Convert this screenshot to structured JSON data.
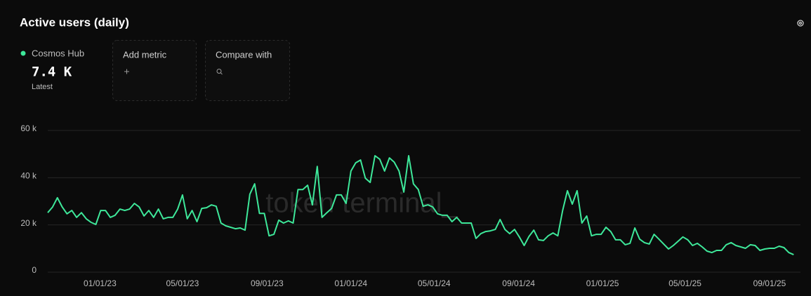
{
  "chart_data": {
    "type": "line",
    "title": "Active users (daily)",
    "x": [
      "2022-10-17",
      "2022-10-24",
      "2022-10-31",
      "2022-11-07",
      "2022-11-14",
      "2022-11-21",
      "2022-11-28",
      "2022-12-05",
      "2022-12-12",
      "2022-12-19",
      "2022-12-26",
      "2023-01-02",
      "2023-01-09",
      "2023-01-16",
      "2023-01-23",
      "2023-01-30",
      "2023-02-06",
      "2023-02-13",
      "2023-02-20",
      "2023-02-27",
      "2023-03-06",
      "2023-03-13",
      "2023-03-20",
      "2023-03-27",
      "2023-04-03",
      "2023-04-10",
      "2023-04-17",
      "2023-04-24",
      "2023-05-01",
      "2023-05-08",
      "2023-05-15",
      "2023-05-22",
      "2023-05-29",
      "2023-06-05",
      "2023-06-12",
      "2023-06-19",
      "2023-06-26",
      "2023-07-03",
      "2023-07-10",
      "2023-07-17",
      "2023-07-24",
      "2023-07-31",
      "2023-08-07",
      "2023-08-14",
      "2023-08-21",
      "2023-08-28",
      "2023-09-04",
      "2023-09-11",
      "2023-09-18",
      "2023-09-25",
      "2023-10-02",
      "2023-10-09",
      "2023-10-16",
      "2023-10-23",
      "2023-10-30",
      "2023-11-06",
      "2023-11-13",
      "2023-11-20",
      "2023-11-27",
      "2023-12-04",
      "2023-12-11",
      "2023-12-18",
      "2023-12-25",
      "2024-01-01",
      "2024-01-08",
      "2024-01-15",
      "2024-01-22",
      "2024-01-29",
      "2024-02-05",
      "2024-02-12",
      "2024-02-19",
      "2024-02-26",
      "2024-03-04",
      "2024-03-11",
      "2024-03-18",
      "2024-03-25",
      "2024-04-01",
      "2024-04-08",
      "2024-04-15",
      "2024-04-22",
      "2024-04-29",
      "2024-05-06",
      "2024-05-13",
      "2024-05-20",
      "2024-05-27",
      "2024-06-03",
      "2024-06-10",
      "2024-06-17",
      "2024-06-24",
      "2024-07-01",
      "2024-07-08",
      "2024-07-15",
      "2024-07-22",
      "2024-07-29",
      "2024-08-05",
      "2024-08-12",
      "2024-08-19",
      "2024-08-26",
      "2024-09-02",
      "2024-09-09",
      "2024-09-16",
      "2024-09-23",
      "2024-09-30",
      "2024-10-07",
      "2024-10-14",
      "2024-10-21",
      "2024-10-28",
      "2024-11-04",
      "2024-11-11",
      "2024-11-18",
      "2024-11-25",
      "2024-12-02",
      "2024-12-09",
      "2024-12-16",
      "2024-12-23",
      "2024-12-30",
      "2025-01-06",
      "2025-01-13",
      "2025-01-20",
      "2025-01-27",
      "2025-02-03",
      "2025-02-10",
      "2025-02-17",
      "2025-02-24",
      "2025-03-03",
      "2025-03-10",
      "2025-03-17",
      "2025-03-24",
      "2025-03-31",
      "2025-04-07",
      "2025-04-14",
      "2025-04-21",
      "2025-04-28",
      "2025-05-05",
      "2025-05-12",
      "2025-05-19",
      "2025-05-26",
      "2025-06-02",
      "2025-06-09",
      "2025-06-16",
      "2025-06-23",
      "2025-06-30",
      "2025-07-07",
      "2025-07-14",
      "2025-07-21",
      "2025-07-28",
      "2025-08-04",
      "2025-08-11",
      "2025-08-18",
      "2025-08-25",
      "2025-09-01",
      "2025-09-08",
      "2025-09-15",
      "2025-09-22",
      "2025-09-29",
      "2025-10-06"
    ],
    "series": [
      {
        "name": "Cosmos Hub",
        "color": "#3ee89a",
        "values": [
          25200,
          27600,
          31500,
          27600,
          24700,
          26100,
          23200,
          25200,
          22600,
          21100,
          20200,
          26100,
          26100,
          23200,
          24100,
          26700,
          26100,
          26700,
          29100,
          27600,
          23800,
          26100,
          23200,
          26700,
          22600,
          23200,
          23200,
          26700,
          32700,
          22600,
          26100,
          21400,
          27000,
          27300,
          28500,
          27900,
          20800,
          19600,
          19000,
          18400,
          18700,
          17800,
          33000,
          37400,
          24900,
          24900,
          15400,
          16000,
          22000,
          20800,
          21700,
          20800,
          35000,
          35000,
          36800,
          28500,
          44800,
          23200,
          25200,
          27000,
          32700,
          32700,
          29100,
          42800,
          46300,
          47500,
          39800,
          38000,
          49300,
          47800,
          42800,
          48400,
          46600,
          42800,
          33900,
          49300,
          37400,
          35000,
          27900,
          28500,
          27600,
          24700,
          24100,
          24100,
          21400,
          23200,
          20800,
          20800,
          20800,
          14300,
          16300,
          17200,
          17500,
          18100,
          22300,
          18100,
          16300,
          18100,
          14900,
          11300,
          15100,
          17800,
          13700,
          13400,
          15400,
          16600,
          15400,
          26100,
          34500,
          28800,
          34500,
          20800,
          23800,
          15400,
          16000,
          16000,
          19000,
          17200,
          13700,
          13700,
          11600,
          12200,
          18700,
          14000,
          12500,
          11900,
          16000,
          14000,
          11900,
          9800,
          11300,
          13100,
          14900,
          13700,
          11300,
          12200,
          10700,
          8900,
          8300,
          9200,
          9200,
          11600,
          12500,
          11300,
          10700,
          10100,
          11600,
          11300,
          9200,
          9800,
          10100,
          10100,
          11000,
          10400,
          8300,
          7400
        ]
      }
    ],
    "xlim": [
      "2022-10-17",
      "2025-10-18"
    ],
    "xticks": [
      {
        "value": "2023-01-01",
        "label": "01/01/23"
      },
      {
        "value": "2023-05-01",
        "label": "05/01/23"
      },
      {
        "value": "2023-09-01",
        "label": "09/01/23"
      },
      {
        "value": "2024-01-01",
        "label": "01/01/24"
      },
      {
        "value": "2024-05-01",
        "label": "05/01/24"
      },
      {
        "value": "2024-09-01",
        "label": "09/01/24"
      },
      {
        "value": "2025-01-01",
        "label": "01/01/25"
      },
      {
        "value": "2025-05-01",
        "label": "05/01/25"
      },
      {
        "value": "2025-09-01",
        "label": "09/01/25"
      }
    ],
    "ylim": [
      0,
      60000
    ],
    "yticks": [
      0,
      {
        "value": 20000,
        "label": "20 k"
      },
      {
        "value": 40000,
        "label": "40 k"
      },
      {
        "value": 60000,
        "label": "60 k"
      }
    ],
    "grid": true
  },
  "summary": {
    "value": "7.4 K",
    "label": "Latest"
  },
  "controls": [
    "Add metric",
    "Compare with"
  ],
  "watermark": "token terminal_"
}
